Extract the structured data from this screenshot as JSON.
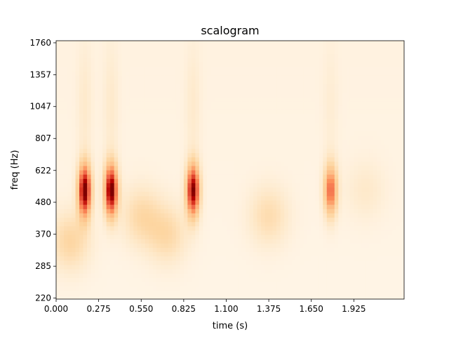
{
  "chart_data": {
    "type": "heatmap",
    "title": "scalogram",
    "xlabel": "time (s)",
    "ylabel": "freq (Hz)",
    "colormap": "OrRd",
    "colors": {
      "low": "#fff7ec",
      "high": "#7f0000"
    },
    "xlim": [
      0,
      2.25
    ],
    "ylim_hz": [
      218,
      1790
    ],
    "y_scale": "log",
    "x_ticks": [
      "0.000",
      "0.275",
      "0.550",
      "0.825",
      "1.100",
      "1.375",
      "1.650",
      "1.925"
    ],
    "y_ticks": [
      "220",
      "285",
      "370",
      "480",
      "622",
      "807",
      "1047",
      "1357",
      "1760"
    ],
    "blobs": [
      {
        "t": 0.185,
        "f": 530,
        "intensity": 1.0
      },
      {
        "t": 0.355,
        "f": 530,
        "intensity": 1.0
      },
      {
        "t": 0.885,
        "f": 530,
        "intensity": 0.95
      },
      {
        "t": 1.775,
        "f": 530,
        "intensity": 0.65
      },
      {
        "t": 0.09,
        "f": 350,
        "intensity": 0.25
      },
      {
        "t": 0.55,
        "f": 430,
        "intensity": 0.22
      },
      {
        "t": 0.72,
        "f": 370,
        "intensity": 0.22
      },
      {
        "t": 1.375,
        "f": 430,
        "intensity": 0.2
      },
      {
        "t": 2.0,
        "f": 530,
        "intensity": 0.1
      }
    ]
  }
}
